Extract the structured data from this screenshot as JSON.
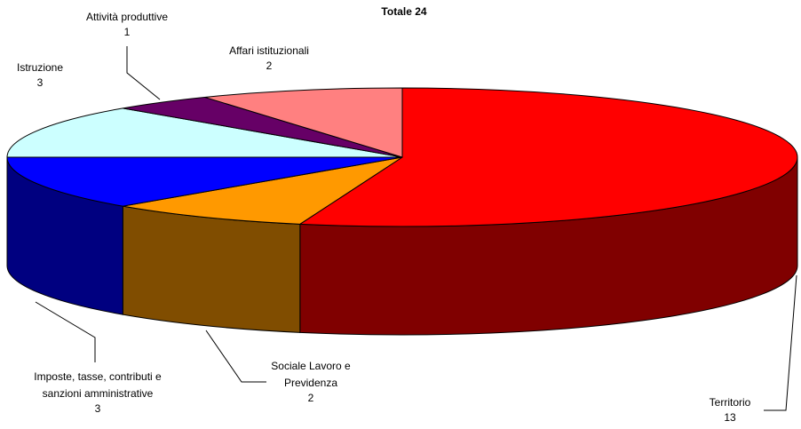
{
  "chart_data": {
    "type": "pie3d",
    "title": "Totale 24",
    "categories": [
      "Territorio",
      "Sociale Lavoro e Previdenza",
      "Imposte, tasse, contributi e sanzioni amministrative",
      "Istruzione",
      "Attività produttive",
      "Affari istituzionali"
    ],
    "values": [
      13,
      2,
      3,
      3,
      1,
      2
    ],
    "colors": [
      "#ff0000",
      "#ff9900",
      "#0000ff",
      "#ccffff",
      "#660066",
      "#ff8080"
    ]
  }
}
